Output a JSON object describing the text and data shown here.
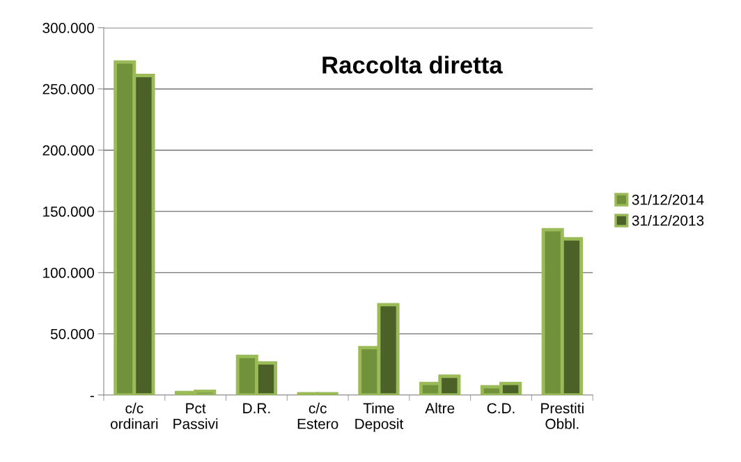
{
  "chart_data": {
    "type": "bar",
    "title": "Raccolta diretta",
    "categories": [
      "c/c\nordinari",
      "Pct\nPassivi",
      "D.R.",
      "c/c\nEstero",
      "Time\nDeposit",
      "Altre",
      "C.D.",
      "Prestiti\nObbl."
    ],
    "series": [
      {
        "name": "31/12/2014",
        "color": "#71913a",
        "values": [
          272000,
          2000,
          31500,
          1000,
          38700,
          9400,
          6700,
          135000
        ]
      },
      {
        "name": "31/12/2013",
        "color": "#4b6127",
        "values": [
          261000,
          3000,
          26200,
          1000,
          73800,
          15300,
          9400,
          127600
        ]
      }
    ],
    "ylim": [
      0,
      300000
    ],
    "yticks": [
      {
        "value": 0,
        "label": "-"
      },
      {
        "value": 50000,
        "label": "50.000"
      },
      {
        "value": 100000,
        "label": "100.000"
      },
      {
        "value": 150000,
        "label": "150.000"
      },
      {
        "value": 200000,
        "label": "200.000"
      },
      {
        "value": 250000,
        "label": "250.000"
      },
      {
        "value": 300000,
        "label": "300.000"
      }
    ],
    "grid": "y",
    "legend": "right"
  }
}
